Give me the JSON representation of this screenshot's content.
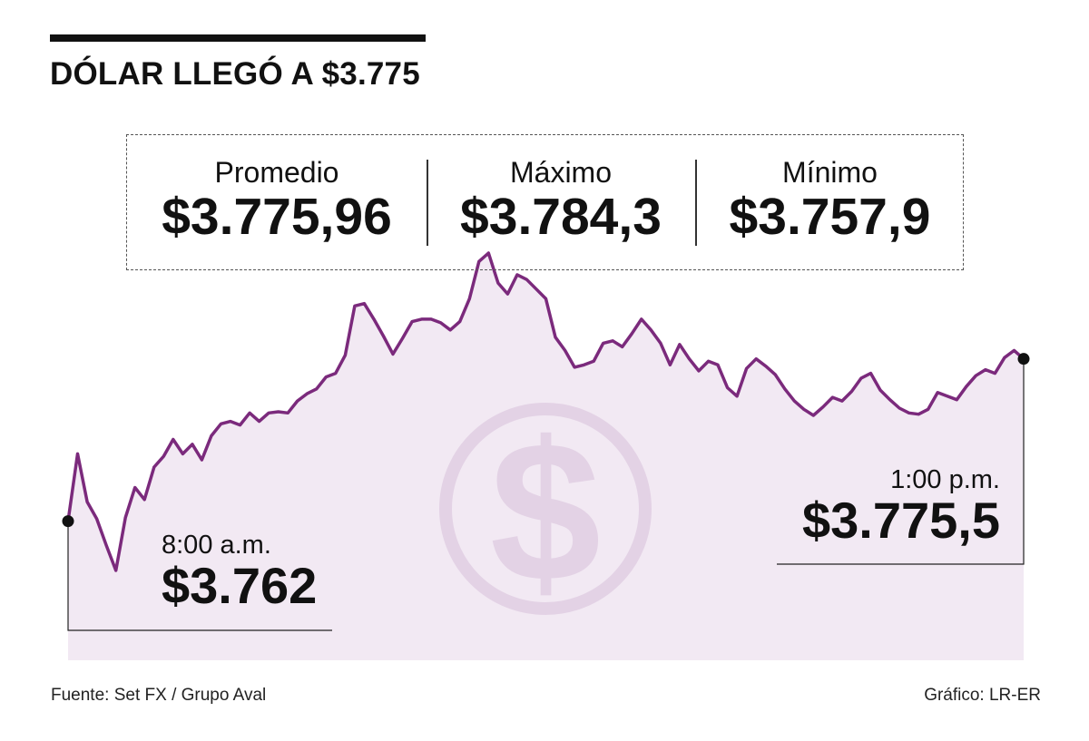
{
  "headline": "DÓLAR LLEGÓ A $3.775",
  "stats": [
    {
      "label": "Promedio",
      "value": "$3.775,96"
    },
    {
      "label": "Máximo",
      "value": "$3.784,3"
    },
    {
      "label": "Mínimo",
      "value": "$3.757,9"
    }
  ],
  "start": {
    "time": "8:00 a.m.",
    "value": "$3.762"
  },
  "end": {
    "time": "1:00 p.m.",
    "value": "$3.775,5"
  },
  "footer": {
    "source": "Fuente: Set FX / Grupo Aval",
    "credit": "Gráfico: LR-ER"
  },
  "colors": {
    "line": "#7b2a7c",
    "area": "#f2e9f3",
    "watermark": "#e3d2e5",
    "text": "#111111"
  },
  "icons": {
    "watermark": "dollar-coin-icon"
  },
  "chart_data": {
    "type": "area",
    "title": "DÓLAR LLEGÓ A $3.775",
    "xlabel": "",
    "ylabel": "",
    "x_range": [
      "8:00 a.m.",
      "1:00 p.m."
    ],
    "ylim": [
      3757.9,
      3784.3
    ],
    "x": [
      0,
      1,
      2,
      3,
      4,
      5,
      6,
      7,
      8,
      9,
      10,
      11,
      12,
      13,
      14,
      15,
      16,
      17,
      18,
      19,
      20,
      21,
      22,
      23,
      24,
      25,
      26,
      27,
      28,
      29,
      30,
      31,
      32,
      33,
      34,
      35,
      36,
      37,
      38,
      39,
      40,
      41,
      42,
      43,
      44,
      45,
      46,
      47,
      48,
      49,
      50,
      51,
      52,
      53,
      54,
      55,
      56,
      57,
      58,
      59,
      60,
      61,
      62,
      63,
      64,
      65,
      66,
      67,
      68,
      69,
      70,
      71,
      72,
      73,
      74,
      75,
      76,
      77,
      78,
      79,
      80,
      81,
      82,
      83,
      84,
      85,
      86,
      87,
      88,
      89,
      90,
      91,
      92,
      93,
      94,
      95,
      96,
      97,
      98,
      99,
      100
    ],
    "values": [
      3762.0,
      3767.6,
      3763.6,
      3762.2,
      3760.0,
      3757.9,
      3762.3,
      3764.8,
      3763.8,
      3766.5,
      3767.4,
      3768.8,
      3767.6,
      3768.4,
      3767.1,
      3769.1,
      3770.1,
      3770.3,
      3770.0,
      3771.0,
      3770.3,
      3771.0,
      3771.1,
      3771.0,
      3772.0,
      3772.6,
      3773.0,
      3774.0,
      3774.3,
      3775.8,
      3779.9,
      3780.1,
      3778.8,
      3777.4,
      3775.9,
      3777.2,
      3778.6,
      3778.8,
      3778.8,
      3778.5,
      3777.9,
      3778.6,
      3780.5,
      3783.6,
      3784.3,
      3781.8,
      3780.9,
      3782.5,
      3782.1,
      3781.3,
      3780.5,
      3777.3,
      3776.2,
      3774.8,
      3775.0,
      3775.3,
      3776.8,
      3777.0,
      3776.5,
      3777.6,
      3778.8,
      3777.9,
      3776.8,
      3775.0,
      3776.7,
      3775.5,
      3774.5,
      3775.3,
      3775.0,
      3773.1,
      3772.4,
      3774.7,
      3775.5,
      3774.9,
      3774.2,
      3773.0,
      3772.0,
      3771.3,
      3770.8,
      3771.5,
      3772.3,
      3772.0,
      3772.8,
      3773.9,
      3774.3,
      3772.9,
      3772.1,
      3771.4,
      3771.0,
      3770.9,
      3771.3,
      3772.7,
      3772.4,
      3772.1,
      3773.2,
      3774.1,
      3774.6,
      3774.3,
      3775.6,
      3776.2,
      3775.5
    ]
  }
}
